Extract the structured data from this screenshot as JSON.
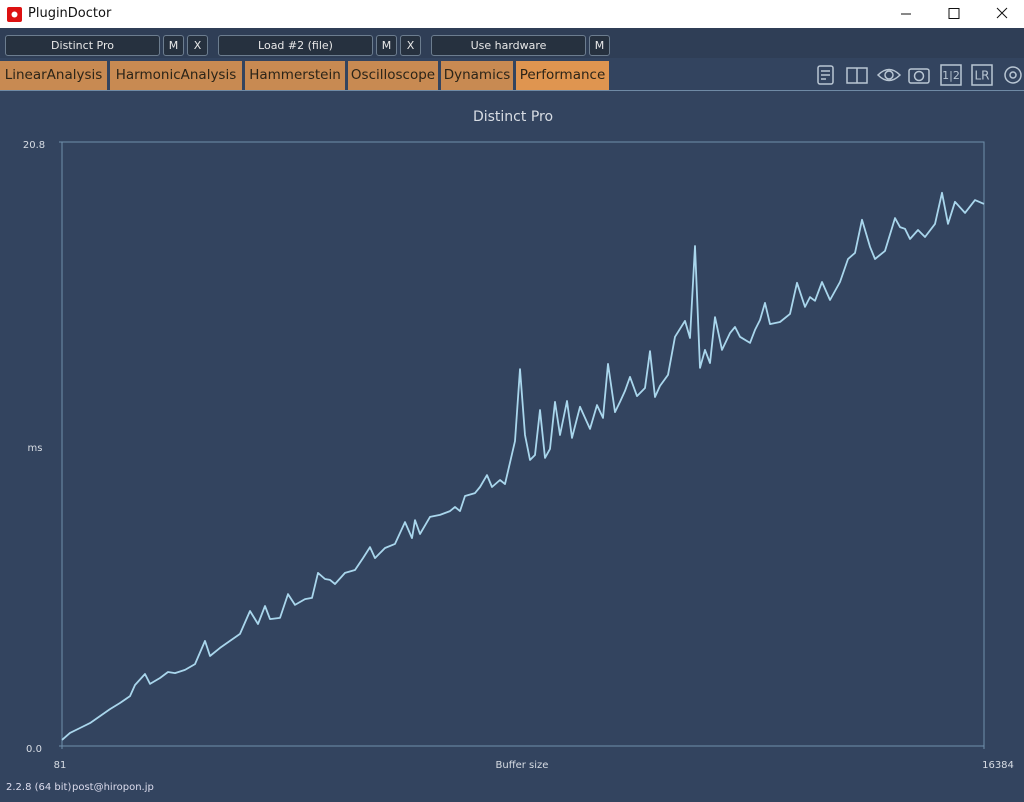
{
  "window": {
    "title": "PluginDoctor"
  },
  "toolbar": {
    "buttons": [
      "Distinct Pro",
      "M",
      "X",
      "Load #2 (file)",
      "M",
      "X",
      "Use hardware",
      "M"
    ],
    "icon_labels": [
      "1|2",
      "LR"
    ]
  },
  "tabs": [
    "LinearAnalysis",
    "HarmonicAnalysis",
    "Hammerstein",
    "Oscilloscope",
    "Dynamics",
    "Performance"
  ],
  "active_tab": "Performance",
  "footer": {
    "version": "2.2.8 (64 bit)",
    "contact": "post@hiropon.jp"
  },
  "chart_data": {
    "type": "line",
    "title": "Distinct Pro",
    "x_label": "Buffer size",
    "y_label": "ms",
    "color": "#a9d6ec",
    "x": [
      81,
      222,
      399,
      576,
      753,
      930,
      1107,
      1283,
      1372,
      1549,
      1637,
      1814,
      1955,
      2079,
      2256,
      2433,
      2610,
      2698,
      2875,
      3052,
      3228,
      3405,
      3547,
      3670,
      3759,
      3936,
      4077,
      4201,
      4378,
      4502,
      4608,
      4731,
      4820,
      4908,
      5085,
      5262,
      5403,
      5527,
      5615,
      5792,
      5969,
      6146,
      6270,
      6323,
      6411,
      6588,
      6765,
      6942,
      7030,
      7118,
      7207,
      7384,
      7472,
      7596,
      7684,
      7826,
      7914,
      8091,
      8179,
      8268,
      8356,
      8445,
      8533,
      8621,
      8710,
      8798,
      8887,
      9010,
      9099,
      9240,
      9417,
      9541,
      9647,
      9735,
      9859,
      9948,
      10036,
      10124,
      10248,
      10390,
      10478,
      10566,
      10655,
      10796,
      10920,
      11097,
      11185,
      11274,
      11362,
      11451,
      11539,
      11627,
      11751,
      11893,
      11981,
      12069,
      12246,
      12335,
      12423,
      12511,
      12600,
      12777,
      12953,
      13077,
      13219,
      13307,
      13396,
      13519,
      13661,
      13838,
      13979,
      14103,
      14227,
      14368,
      14456,
      14633,
      14810,
      14899,
      14987,
      15075,
      15217,
      15341,
      15517,
      15641,
      15747,
      15871,
      16048,
      16225,
      16384
    ],
    "values": [
      0.21,
      0.45,
      0.62,
      0.79,
      1.03,
      1.27,
      1.48,
      1.72,
      2.1,
      2.48,
      2.14,
      2.34,
      2.55,
      2.51,
      2.62,
      2.82,
      3.62,
      3.1,
      3.38,
      3.62,
      3.86,
      4.65,
      4.2,
      4.82,
      4.37,
      4.41,
      5.23,
      4.86,
      5.06,
      5.1,
      5.96,
      5.75,
      5.72,
      5.58,
      5.96,
      6.06,
      6.47,
      6.85,
      6.47,
      6.82,
      6.96,
      7.71,
      7.16,
      7.78,
      7.3,
      7.89,
      7.96,
      8.09,
      8.23,
      8.09,
      8.61,
      8.71,
      8.92,
      9.33,
      8.92,
      9.16,
      9.02,
      10.5,
      12.98,
      10.71,
      9.85,
      10.02,
      11.57,
      9.92,
      10.23,
      11.85,
      10.71,
      11.88,
      10.61,
      11.68,
      10.92,
      11.74,
      11.3,
      13.16,
      11.5,
      11.85,
      12.23,
      12.71,
      12.05,
      12.33,
      13.6,
      12.02,
      12.4,
      12.78,
      14.09,
      14.64,
      14.05,
      17.22,
      13.02,
      13.64,
      13.19,
      14.77,
      13.64,
      14.22,
      14.43,
      14.09,
      13.88,
      14.33,
      14.67,
      15.26,
      14.53,
      14.6,
      14.88,
      15.95,
      15.12,
      15.46,
      15.33,
      15.98,
      15.36,
      15.98,
      16.77,
      16.98,
      18.12,
      17.19,
      16.77,
      17.05,
      18.18,
      17.87,
      17.81,
      17.46,
      17.77,
      17.53,
      17.98,
      19.05,
      17.98,
      18.74,
      18.36,
      18.8,
      18.67
    ],
    "xlim": [
      81,
      16384
    ],
    "xticks": [
      81,
      16384
    ],
    "ylim": [
      0,
      20.8
    ],
    "yticks": [
      {
        "value": 0,
        "label": "0.0"
      },
      20.8
    ]
  }
}
